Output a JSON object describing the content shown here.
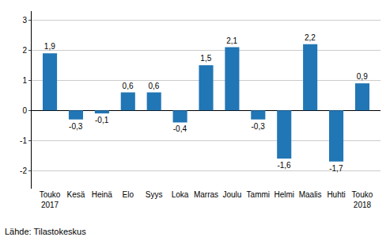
{
  "chart_data": {
    "type": "bar",
    "categories": [
      "Touko\n2017",
      "Kesä",
      "Heinä",
      "Elo",
      "Syys",
      "Loka",
      "Marras",
      "Joulu",
      "Tammi",
      "Helmi",
      "Maalis",
      "Huhti",
      "Touko\n2018"
    ],
    "values": [
      1.9,
      -0.3,
      -0.1,
      0.6,
      0.6,
      -0.4,
      1.5,
      2.1,
      -0.3,
      -1.6,
      2.2,
      -1.7,
      0.9
    ],
    "value_labels": [
      "1,9",
      "-0,3",
      "-0,1",
      "0,6",
      "0,6",
      "-0,4",
      "1,5",
      "2,1",
      "-0,3",
      "-1,6",
      "2,2",
      "-1,7",
      "0,9"
    ],
    "data_labels": true,
    "color": "#2176b5",
    "ylim": [
      -2.6,
      3.3
    ],
    "yticks": [
      -2,
      -1,
      0,
      1,
      2,
      3
    ],
    "grid": true,
    "annotations": [
      "Lähde: Tilastokeskus"
    ]
  }
}
